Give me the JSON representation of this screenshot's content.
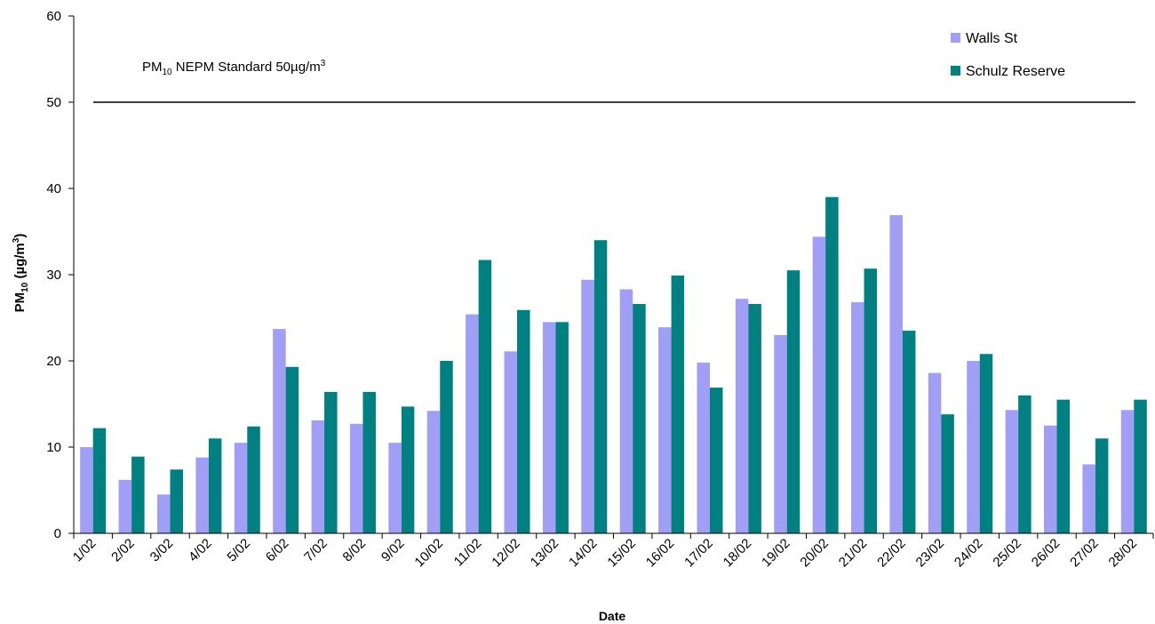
{
  "chart_data": {
    "type": "bar",
    "title": "",
    "xlabel": "Date",
    "ylabel": {
      "main": "PM",
      "sub": "10",
      "rest": " (µg/m",
      "sup": "3",
      "end": ")"
    },
    "ylim": [
      0,
      60
    ],
    "yticks": [
      0,
      10,
      20,
      30,
      40,
      50,
      60
    ],
    "grid": false,
    "legend_position": "top-right",
    "categories": [
      "1/02",
      "2/02",
      "3/02",
      "4/02",
      "5/02",
      "6/02",
      "7/02",
      "8/02",
      "9/02",
      "10/02",
      "11/02",
      "12/02",
      "13/02",
      "14/02",
      "15/02",
      "16/02",
      "17/02",
      "18/02",
      "19/02",
      "20/02",
      "21/02",
      "22/02",
      "23/02",
      "24/02",
      "25/02",
      "26/02",
      "27/02",
      "28/02"
    ],
    "series": [
      {
        "name": "Walls St",
        "color": "#a09ef5",
        "values": [
          10.0,
          6.2,
          4.5,
          8.8,
          10.5,
          23.7,
          13.1,
          12.7,
          10.5,
          14.2,
          25.4,
          21.1,
          24.5,
          29.4,
          28.3,
          23.9,
          19.8,
          27.2,
          23.0,
          34.4,
          26.8,
          36.9,
          18.6,
          20.0,
          14.3,
          12.5,
          8.0,
          14.3
        ]
      },
      {
        "name": "Schulz Reserve",
        "color": "#008080",
        "values": [
          12.2,
          8.9,
          7.4,
          11.0,
          12.4,
          19.3,
          16.4,
          16.4,
          14.7,
          20.0,
          31.7,
          25.9,
          24.5,
          34.0,
          26.6,
          29.9,
          16.9,
          26.6,
          30.5,
          39.0,
          30.7,
          23.5,
          13.8,
          20.8,
          16.0,
          15.5,
          11.0,
          15.5
        ]
      }
    ],
    "reference_line": {
      "value": 50,
      "label": {
        "pre": "PM",
        "sub": "10",
        "mid": " NEPM Standard 50",
        "mu": "µ",
        "post": "g/m",
        "sup": "3"
      }
    }
  }
}
